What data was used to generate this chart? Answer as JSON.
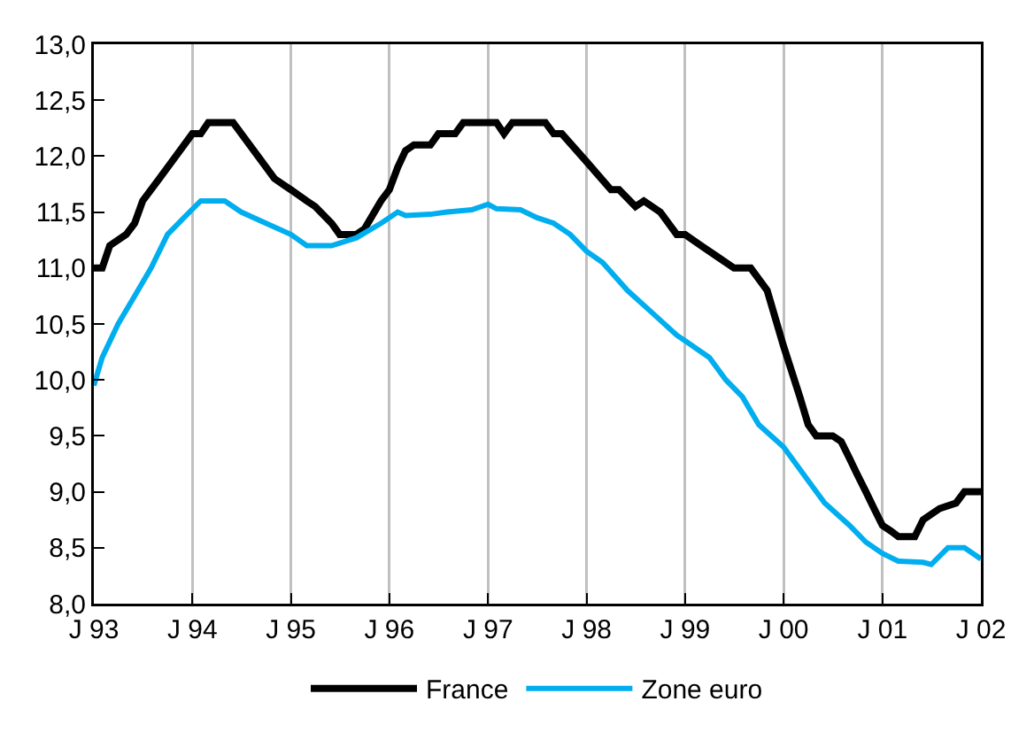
{
  "chart_data": {
    "type": "line",
    "xlim": [
      "1993-01",
      "2002-01"
    ],
    "xticks": [
      {
        "value": "1993-01",
        "label": "J 93"
      },
      {
        "value": "1994-01",
        "label": "J 94"
      },
      {
        "value": "1995-01",
        "label": "J 95"
      },
      {
        "value": "1996-01",
        "label": "J 96"
      },
      {
        "value": "1997-01",
        "label": "J 97"
      },
      {
        "value": "1998-01",
        "label": "J 98"
      },
      {
        "value": "1999-01",
        "label": "J 99"
      },
      {
        "value": "2000-01",
        "label": "J 00"
      },
      {
        "value": "2001-01",
        "label": "J 01"
      },
      {
        "value": "2002-01",
        "label": "J 02"
      }
    ],
    "ylim": [
      8,
      13
    ],
    "yticks": [
      {
        "value": 8,
        "label": "8,0"
      },
      {
        "value": 8.5,
        "label": "8,5"
      },
      {
        "value": 9,
        "label": "9,0"
      },
      {
        "value": 9.5,
        "label": "9,5"
      },
      {
        "value": 10,
        "label": "10,0"
      },
      {
        "value": 10.5,
        "label": "10,5"
      },
      {
        "value": 11,
        "label": "11,0"
      },
      {
        "value": 11.5,
        "label": "11,5"
      },
      {
        "value": 12,
        "label": "12,0"
      },
      {
        "value": 12.5,
        "label": "12,5"
      },
      {
        "value": 13,
        "label": "13,0"
      }
    ],
    "grid": "x",
    "legend": "bottom",
    "line_style": "solid",
    "marker": "none",
    "series": [
      {
        "name": "France",
        "color": "#000000",
        "x": [
          "1993-01",
          "1993-02",
          "1993-03",
          "1993-05",
          "1993-06",
          "1993-07",
          "1993-09",
          "1993-11",
          "1994-01",
          "1994-02",
          "1994-03",
          "1994-06",
          "1994-09",
          "1994-11",
          "1994-12",
          "1995-01",
          "1995-03",
          "1995-04",
          "1995-06",
          "1995-07",
          "1995-09",
          "1995-10",
          "1995-12",
          "1996-01",
          "1996-02",
          "1996-03",
          "1996-04",
          "1996-06",
          "1996-07",
          "1996-09",
          "1996-10",
          "1997-02",
          "1997-03",
          "1997-04",
          "1997-08",
          "1997-09",
          "1997-10",
          "1998-01",
          "1998-04",
          "1998-05",
          "1998-07",
          "1998-08",
          "1998-10",
          "1998-12",
          "1999-01",
          "1999-03",
          "1999-05",
          "1999-07",
          "1999-09",
          "1999-11",
          "2000-01",
          "2000-03",
          "2000-04",
          "2000-05",
          "2000-07",
          "2000-08",
          "2000-09",
          "2000-10",
          "2000-11",
          "2000-12",
          "2001-01",
          "2001-02",
          "2001-03",
          "2001-05",
          "2001-06",
          "2001-08",
          "2001-10",
          "2001-11",
          "2002-01"
        ],
        "values": [
          11.0,
          11.0,
          11.2,
          11.3,
          11.4,
          11.6,
          11.8,
          12.0,
          12.2,
          12.2,
          12.3,
          12.3,
          12.0,
          11.8,
          11.75,
          11.7,
          11.6,
          11.55,
          11.4,
          11.3,
          11.3,
          11.35,
          11.6,
          11.7,
          11.9,
          12.05,
          12.1,
          12.1,
          12.2,
          12.2,
          12.3,
          12.3,
          12.2,
          12.3,
          12.3,
          12.2,
          12.2,
          11.95,
          11.7,
          11.7,
          11.55,
          11.6,
          11.5,
          11.3,
          11.3,
          11.2,
          11.1,
          11.0,
          11.0,
          10.8,
          10.3,
          9.85,
          9.6,
          9.5,
          9.5,
          9.45,
          9.3,
          9.15,
          9.0,
          8.85,
          8.7,
          8.65,
          8.6,
          8.6,
          8.75,
          8.85,
          8.9,
          9.0,
          9.0
        ]
      },
      {
        "name": "Zone euro",
        "color": "#00aeef",
        "x": [
          "1993-01",
          "1993-02",
          "1993-04",
          "1993-06",
          "1993-08",
          "1993-10",
          "1993-12",
          "1994-02",
          "1994-05",
          "1994-07",
          "1994-10",
          "1995-01",
          "1995-03",
          "1995-06",
          "1995-09",
          "1995-12",
          "1996-02",
          "1996-03",
          "1996-06",
          "1996-08",
          "1996-11",
          "1997-01",
          "1997-02",
          "1997-05",
          "1997-07",
          "1997-09",
          "1997-11",
          "1998-01",
          "1998-03",
          "1998-06",
          "1998-09",
          "1998-12",
          "1999-01",
          "1999-04",
          "1999-06",
          "1999-08",
          "1999-10",
          "2000-01",
          "2000-04",
          "2000-06",
          "2000-09",
          "2000-11",
          "2001-01",
          "2001-03",
          "2001-06",
          "2001-07",
          "2001-09",
          "2001-11",
          "2002-01"
        ],
        "values": [
          9.95,
          10.2,
          10.5,
          10.75,
          11.0,
          11.3,
          11.45,
          11.6,
          11.6,
          11.5,
          11.4,
          11.3,
          11.2,
          11.2,
          11.27,
          11.4,
          11.5,
          11.47,
          11.48,
          11.5,
          11.52,
          11.57,
          11.53,
          11.52,
          11.45,
          11.4,
          11.3,
          11.15,
          11.05,
          10.8,
          10.6,
          10.4,
          10.35,
          10.2,
          10.0,
          9.85,
          9.6,
          9.4,
          9.1,
          8.9,
          8.7,
          8.55,
          8.45,
          8.38,
          8.37,
          8.35,
          8.5,
          8.5,
          8.4
        ]
      }
    ]
  }
}
